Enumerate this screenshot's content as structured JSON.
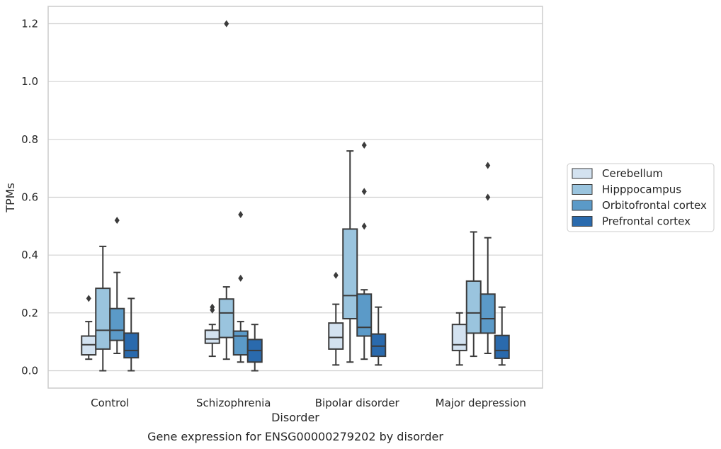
{
  "chart_data": {
    "type": "box",
    "title": "Gene expression for ENSG00000279202 by disorder",
    "xlabel": "Disorder",
    "ylabel": "TPMs",
    "ylim": [
      -0.06,
      1.26
    ],
    "yticks": [
      0.0,
      0.2,
      0.4,
      0.6,
      0.8,
      1.0,
      1.2
    ],
    "ytick_labels": [
      "0.0",
      "0.2",
      "0.4",
      "0.6",
      "0.8",
      "1.0",
      "1.2"
    ],
    "grid": "horizontal",
    "legend_position": "right",
    "categories": [
      "Control",
      "Schizophrenia",
      "Bipolar disorder",
      "Major depression"
    ],
    "series": [
      {
        "name": "Cerebellum",
        "color": "#d3e2f0",
        "boxes": [
          {
            "whisker_low": 0.04,
            "q1": 0.055,
            "median": 0.09,
            "q3": 0.12,
            "whisker_high": 0.17,
            "outliers": [
              0.25
            ]
          },
          {
            "whisker_low": 0.05,
            "q1": 0.095,
            "median": 0.11,
            "q3": 0.14,
            "whisker_high": 0.16,
            "outliers": [
              0.21,
              0.22
            ]
          },
          {
            "whisker_low": 0.02,
            "q1": 0.075,
            "median": 0.115,
            "q3": 0.165,
            "whisker_high": 0.23,
            "outliers": [
              0.33
            ]
          },
          {
            "whisker_low": 0.02,
            "q1": 0.07,
            "median": 0.09,
            "q3": 0.16,
            "whisker_high": 0.2,
            "outliers": []
          }
        ]
      },
      {
        "name": "Hipppocampus",
        "color": "#9ac4de",
        "boxes": [
          {
            "whisker_low": 0.0,
            "q1": 0.075,
            "median": 0.14,
            "q3": 0.285,
            "whisker_high": 0.43,
            "outliers": []
          },
          {
            "whisker_low": 0.04,
            "q1": 0.115,
            "median": 0.2,
            "q3": 0.248,
            "whisker_high": 0.29,
            "outliers": [
              1.2
            ]
          },
          {
            "whisker_low": 0.03,
            "q1": 0.18,
            "median": 0.26,
            "q3": 0.49,
            "whisker_high": 0.76,
            "outliers": []
          },
          {
            "whisker_low": 0.05,
            "q1": 0.13,
            "median": 0.2,
            "q3": 0.31,
            "whisker_high": 0.48,
            "outliers": []
          }
        ]
      },
      {
        "name": "Orbitofrontal cortex",
        "color": "#5b9ac8",
        "boxes": [
          {
            "whisker_low": 0.06,
            "q1": 0.105,
            "median": 0.14,
            "q3": 0.215,
            "whisker_high": 0.34,
            "outliers": [
              0.52
            ]
          },
          {
            "whisker_low": 0.03,
            "q1": 0.055,
            "median": 0.12,
            "q3": 0.137,
            "whisker_high": 0.17,
            "outliers": [
              0.32,
              0.54
            ]
          },
          {
            "whisker_low": 0.04,
            "q1": 0.12,
            "median": 0.15,
            "q3": 0.265,
            "whisker_high": 0.28,
            "outliers": [
              0.5,
              0.62,
              0.78
            ]
          },
          {
            "whisker_low": 0.06,
            "q1": 0.13,
            "median": 0.18,
            "q3": 0.265,
            "whisker_high": 0.46,
            "outliers": [
              0.6,
              0.71
            ]
          }
        ]
      },
      {
        "name": "Prefrontal cortex",
        "color": "#2a6aad",
        "boxes": [
          {
            "whisker_low": 0.0,
            "q1": 0.045,
            "median": 0.07,
            "q3": 0.13,
            "whisker_high": 0.25,
            "outliers": []
          },
          {
            "whisker_low": 0.0,
            "q1": 0.03,
            "median": 0.07,
            "q3": 0.108,
            "whisker_high": 0.16,
            "outliers": []
          },
          {
            "whisker_low": 0.02,
            "q1": 0.05,
            "median": 0.085,
            "q3": 0.127,
            "whisker_high": 0.22,
            "outliers": []
          },
          {
            "whisker_low": 0.02,
            "q1": 0.043,
            "median": 0.07,
            "q3": 0.122,
            "whisker_high": 0.22,
            "outliers": []
          }
        ]
      }
    ]
  }
}
